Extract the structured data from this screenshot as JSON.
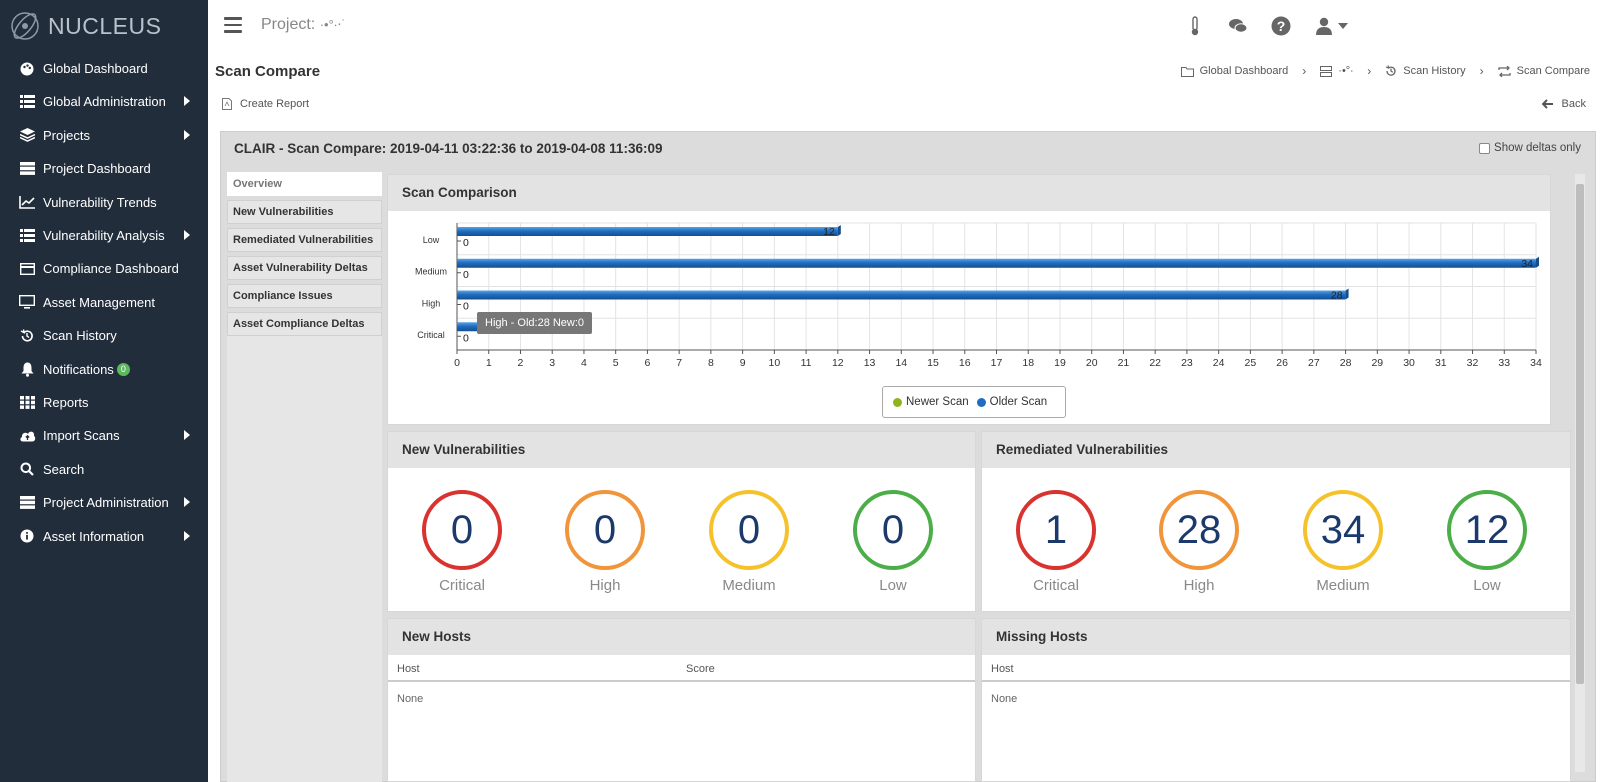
{
  "app": {
    "name": "NUCLEUS"
  },
  "sidebar": {
    "items": [
      {
        "label": "Global Dashboard",
        "icon": "palette-icon",
        "has_submenu": false
      },
      {
        "label": "Global Administration",
        "icon": "list-icon",
        "has_submenu": true
      },
      {
        "label": "Projects",
        "icon": "layers-icon",
        "has_submenu": true
      },
      {
        "label": "Project Dashboard",
        "icon": "server-icon",
        "has_submenu": false
      },
      {
        "label": "Vulnerability Trends",
        "icon": "line-chart-icon",
        "has_submenu": false
      },
      {
        "label": "Vulnerability Analysis",
        "icon": "list-icon",
        "has_submenu": true
      },
      {
        "label": "Compliance Dashboard",
        "icon": "card-icon",
        "has_submenu": false
      },
      {
        "label": "Asset Management",
        "icon": "monitor-icon",
        "has_submenu": false
      },
      {
        "label": "Scan History",
        "icon": "history-icon",
        "has_submenu": false
      },
      {
        "label": "Notifications",
        "icon": "bell-icon",
        "has_submenu": false,
        "badge": "0"
      },
      {
        "label": "Reports",
        "icon": "grid-icon",
        "has_submenu": false
      },
      {
        "label": "Import Scans",
        "icon": "cloud-upload-icon",
        "has_submenu": true
      },
      {
        "label": "Search",
        "icon": "search-icon",
        "has_submenu": false
      },
      {
        "label": "Project Administration",
        "icon": "server-icon",
        "has_submenu": true
      },
      {
        "label": "Asset Information",
        "icon": "info-icon",
        "has_submenu": true
      }
    ]
  },
  "topbar": {
    "project_label": "Project:",
    "project_name": "·•°∙‧˙"
  },
  "page": {
    "title": "Scan Compare",
    "create_report": "Create Report",
    "back": "Back",
    "breadcrumb": [
      "Global Dashboard",
      "·•°∙",
      "Scan History",
      "Scan Compare"
    ]
  },
  "panel": {
    "title": "CLAIR - Scan Compare: 2019-04-11 03:22:36 to 2019-04-08 11:36:09",
    "show_deltas_label": "Show deltas only",
    "tabs": [
      "Overview",
      "New Vulnerabilities",
      "Remediated Vulnerabilities",
      "Asset Vulnerability Deltas",
      "Compliance Issues",
      "Asset Compliance Deltas"
    ]
  },
  "scan_comparison": {
    "title": "Scan Comparison",
    "tooltip": "High - Old:28 New:0"
  },
  "chart_data": {
    "type": "bar",
    "orientation": "horizontal",
    "categories": [
      "Low",
      "Medium",
      "High",
      "Critical"
    ],
    "series": [
      {
        "name": "Older Scan",
        "color": "#1f6dc1",
        "values": [
          12,
          34,
          28,
          1
        ]
      },
      {
        "name": "Newer Scan",
        "color": "#8db31e",
        "values": [
          0,
          0,
          0,
          0
        ]
      }
    ],
    "xlim": [
      0,
      34
    ],
    "x_ticks": [
      0,
      1,
      2,
      3,
      4,
      5,
      6,
      7,
      8,
      9,
      10,
      11,
      12,
      13,
      14,
      15,
      16,
      17,
      18,
      19,
      20,
      21,
      22,
      23,
      24,
      25,
      26,
      27,
      28,
      29,
      30,
      31,
      32,
      33,
      34
    ],
    "grid": true,
    "legend": [
      "Newer Scan",
      "Older Scan"
    ]
  },
  "new_vulnerabilities": {
    "title": "New Vulnerabilities",
    "items": [
      {
        "label": "Critical",
        "value": "0",
        "color": "#d9332f"
      },
      {
        "label": "High",
        "value": "0",
        "color": "#f0953a"
      },
      {
        "label": "Medium",
        "value": "0",
        "color": "#f5c22b"
      },
      {
        "label": "Low",
        "value": "0",
        "color": "#4cae48"
      }
    ]
  },
  "remediated_vulnerabilities": {
    "title": "Remediated Vulnerabilities",
    "items": [
      {
        "label": "Critical",
        "value": "1",
        "color": "#d9332f"
      },
      {
        "label": "High",
        "value": "28",
        "color": "#f0953a"
      },
      {
        "label": "Medium",
        "value": "34",
        "color": "#f5c22b"
      },
      {
        "label": "Low",
        "value": "12",
        "color": "#4cae48"
      }
    ]
  },
  "new_hosts": {
    "title": "New Hosts",
    "columns": [
      "Host",
      "Score"
    ],
    "empty": "None"
  },
  "missing_hosts": {
    "title": "Missing Hosts",
    "columns": [
      "Host"
    ],
    "empty": "None"
  }
}
